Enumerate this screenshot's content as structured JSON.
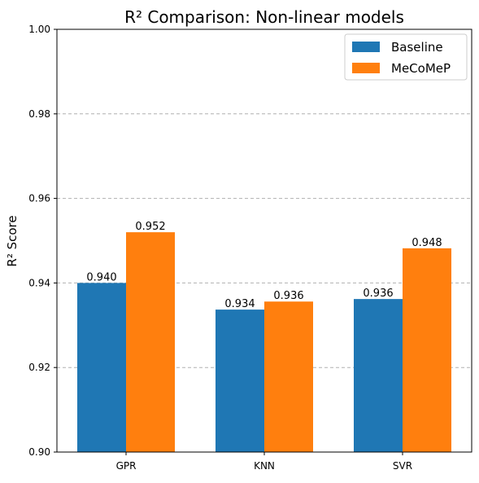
{
  "chart_data": {
    "type": "bar",
    "title": "R² Comparison: Non-linear models",
    "xlabel": "",
    "ylabel": "R² Score",
    "categories": [
      "GPR",
      "KNN",
      "SVR"
    ],
    "series": [
      {
        "name": "Baseline",
        "color": "#1f77b4",
        "values": [
          0.94,
          0.9337,
          0.9362
        ],
        "labels": [
          "0.940",
          "0.934",
          "0.936"
        ]
      },
      {
        "name": "MeCoMeP",
        "color": "#ff7f0e",
        "values": [
          0.952,
          0.9356,
          0.9482
        ],
        "labels": [
          "0.952",
          "0.936",
          "0.948"
        ]
      }
    ],
    "ylim": [
      0.9,
      1.0
    ],
    "yticks": [
      0.9,
      0.92,
      0.94,
      0.96,
      0.98,
      1.0
    ],
    "ytick_labels": [
      "0.90",
      "0.92",
      "0.94",
      "0.96",
      "0.98",
      "1.00"
    ],
    "grid": "y-dashed",
    "legend_position": "top-right"
  }
}
